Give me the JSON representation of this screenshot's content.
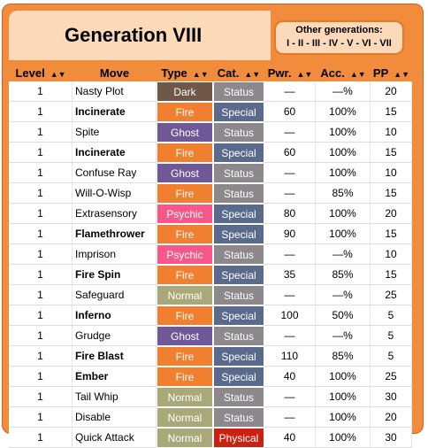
{
  "title": "Generation VIII",
  "other_generations": {
    "label": "Other generations:",
    "links": [
      "I",
      "II",
      "III",
      "IV",
      "V",
      "VI",
      "VII"
    ]
  },
  "columns": [
    "Level",
    "Move",
    "Type",
    "Cat.",
    "Pwr.",
    "Acc.",
    "PP"
  ],
  "colors": {
    "Dark": "#705848",
    "Fire": "#f08030",
    "Ghost": "#705898",
    "Psychic": "#f85888",
    "Normal": "#a8a878",
    "Status": "#8c888c",
    "Special": "#5a6a8c",
    "Physical": "#c92112"
  },
  "rows": [
    {
      "level": "1",
      "move": "Nasty Plot",
      "bold": false,
      "type": "Dark",
      "cat": "Status",
      "pwr": "—",
      "acc": "—%",
      "pp": "20"
    },
    {
      "level": "1",
      "move": "Incinerate",
      "bold": true,
      "type": "Fire",
      "cat": "Special",
      "pwr": "60",
      "acc": "100%",
      "pp": "15"
    },
    {
      "level": "1",
      "move": "Spite",
      "bold": false,
      "type": "Ghost",
      "cat": "Status",
      "pwr": "—",
      "acc": "100%",
      "pp": "10"
    },
    {
      "level": "1",
      "move": "Incinerate",
      "bold": true,
      "type": "Fire",
      "cat": "Special",
      "pwr": "60",
      "acc": "100%",
      "pp": "15"
    },
    {
      "level": "1",
      "move": "Confuse Ray",
      "bold": false,
      "type": "Ghost",
      "cat": "Status",
      "pwr": "—",
      "acc": "100%",
      "pp": "10"
    },
    {
      "level": "1",
      "move": "Will-O-Wisp",
      "bold": false,
      "type": "Fire",
      "cat": "Status",
      "pwr": "—",
      "acc": "85%",
      "pp": "15"
    },
    {
      "level": "1",
      "move": "Extrasensory",
      "bold": false,
      "type": "Psychic",
      "cat": "Special",
      "pwr": "80",
      "acc": "100%",
      "pp": "20"
    },
    {
      "level": "1",
      "move": "Flamethrower",
      "bold": true,
      "type": "Fire",
      "cat": "Special",
      "pwr": "90",
      "acc": "100%",
      "pp": "15"
    },
    {
      "level": "1",
      "move": "Imprison",
      "bold": false,
      "type": "Psychic",
      "cat": "Status",
      "pwr": "—",
      "acc": "—%",
      "pp": "10"
    },
    {
      "level": "1",
      "move": "Fire Spin",
      "bold": true,
      "type": "Fire",
      "cat": "Special",
      "pwr": "35",
      "acc": "85%",
      "pp": "15"
    },
    {
      "level": "1",
      "move": "Safeguard",
      "bold": false,
      "type": "Normal",
      "cat": "Status",
      "pwr": "—",
      "acc": "—%",
      "pp": "25"
    },
    {
      "level": "1",
      "move": "Inferno",
      "bold": true,
      "type": "Fire",
      "cat": "Special",
      "pwr": "100",
      "acc": "50%",
      "pp": "5"
    },
    {
      "level": "1",
      "move": "Grudge",
      "bold": false,
      "type": "Ghost",
      "cat": "Status",
      "pwr": "—",
      "acc": "—%",
      "pp": "5"
    },
    {
      "level": "1",
      "move": "Fire Blast",
      "bold": true,
      "type": "Fire",
      "cat": "Special",
      "pwr": "110",
      "acc": "85%",
      "pp": "5"
    },
    {
      "level": "1",
      "move": "Ember",
      "bold": true,
      "type": "Fire",
      "cat": "Special",
      "pwr": "40",
      "acc": "100%",
      "pp": "25"
    },
    {
      "level": "1",
      "move": "Tail Whip",
      "bold": false,
      "type": "Normal",
      "cat": "Status",
      "pwr": "—",
      "acc": "100%",
      "pp": "30"
    },
    {
      "level": "1",
      "move": "Disable",
      "bold": false,
      "type": "Normal",
      "cat": "Status",
      "pwr": "—",
      "acc": "100%",
      "pp": "20"
    },
    {
      "level": "1",
      "move": "Quick Attack",
      "bold": false,
      "type": "Normal",
      "cat": "Physical",
      "pwr": "40",
      "acc": "100%",
      "pp": "30"
    }
  ]
}
